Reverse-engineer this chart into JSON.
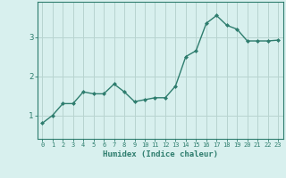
{
  "x": [
    0,
    1,
    2,
    3,
    4,
    5,
    6,
    7,
    8,
    9,
    10,
    11,
    12,
    13,
    14,
    15,
    16,
    17,
    18,
    19,
    20,
    21,
    22,
    23
  ],
  "y": [
    0.8,
    1.0,
    1.3,
    1.3,
    1.6,
    1.55,
    1.55,
    1.8,
    1.6,
    1.35,
    1.4,
    1.45,
    1.45,
    1.75,
    2.5,
    2.65,
    3.35,
    3.55,
    3.3,
    3.2,
    2.9,
    2.9,
    2.9,
    2.92
  ],
  "line_color": "#2e7d6e",
  "marker": "D",
  "marker_size": 2.0,
  "bg_color": "#d8f0ee",
  "grid_color": "#b8d4d0",
  "axis_color": "#2e7d6e",
  "xlabel": "Humidex (Indice chaleur)",
  "yticks": [
    1,
    2,
    3
  ],
  "ylim": [
    0.4,
    3.9
  ],
  "xlim": [
    -0.5,
    23.5
  ],
  "xfontsize": 5.0,
  "yfontsize": 6.5,
  "labelfontsize": 6.5
}
